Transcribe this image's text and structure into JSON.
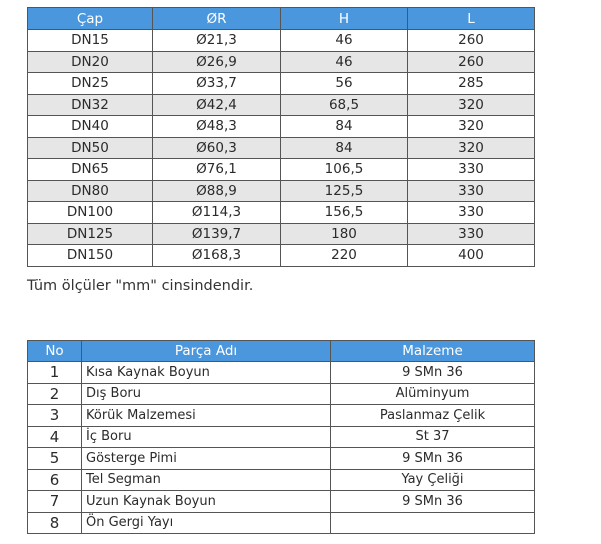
{
  "dimensions": {
    "headers": [
      "Çap",
      "ØR",
      "H",
      "L"
    ],
    "rows": [
      [
        "DN15",
        "Ø21,3",
        "46",
        "260"
      ],
      [
        "DN20",
        "Ø26,9",
        "46",
        "260"
      ],
      [
        "DN25",
        "Ø33,7",
        "56",
        "285"
      ],
      [
        "DN32",
        "Ø42,4",
        "68,5",
        "320"
      ],
      [
        "DN40",
        "Ø48,3",
        "84",
        "320"
      ],
      [
        "DN50",
        "Ø60,3",
        "84",
        "320"
      ],
      [
        "DN65",
        "Ø76,1",
        "106,5",
        "330"
      ],
      [
        "DN80",
        "Ø88,9",
        "125,5",
        "330"
      ],
      [
        "DN100",
        "Ø114,3",
        "156,5",
        "330"
      ],
      [
        "DN125",
        "Ø139,7",
        "180",
        "330"
      ],
      [
        "DN150",
        "Ø168,3",
        "220",
        "400"
      ]
    ],
    "header_color": "#4a97dd",
    "stripe_color": "#e6e6e6"
  },
  "note": "Tüm ölçüler \"mm\" cinsindendir.",
  "parts": {
    "headers": [
      "No",
      "Parça Adı",
      "Malzeme"
    ],
    "rows": [
      [
        "1",
        "Kısa Kaynak Boyun",
        "9 SMn 36"
      ],
      [
        "2",
        "Dış Boru",
        "Alüminyum"
      ],
      [
        "3",
        "Körük Malzemesi",
        "Paslanmaz Çelik"
      ],
      [
        "4",
        "İç Boru",
        "St 37"
      ],
      [
        "5",
        "Gösterge Pimi",
        "9 SMn 36"
      ],
      [
        "6",
        "Tel Segman",
        "Yay Çeliği"
      ],
      [
        "7",
        "Uzun Kaynak Boyun",
        "9 SMn 36"
      ],
      [
        "8",
        "Ön Gergi Yayı",
        ""
      ]
    ]
  }
}
